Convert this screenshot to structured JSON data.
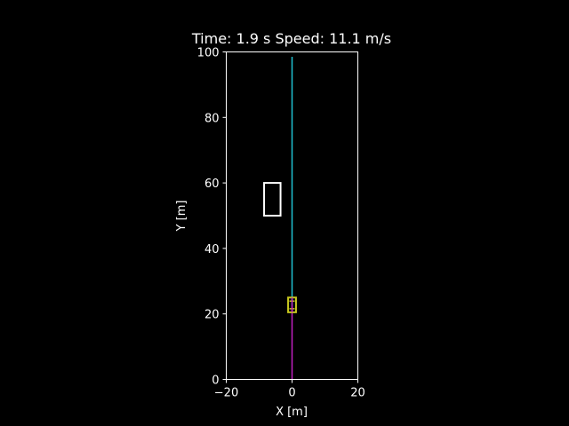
{
  "colors": {
    "background": "#000000",
    "axes": "#ffffff",
    "planned_path": "#1fc1d1",
    "traveled_path": "#c21fc2",
    "ego_vehicle": "#c8c81e",
    "obstacle": "#ffffff"
  },
  "chart_data": {
    "type": "line",
    "title": "Time: 1.9 s Speed: 11.1 m/s",
    "xlabel": "X [m]",
    "ylabel": "Y [m]",
    "xlim": [
      -20,
      20
    ],
    "ylim": [
      0,
      100
    ],
    "x_ticks": [
      -20,
      0,
      20
    ],
    "y_ticks": [
      0,
      20,
      40,
      60,
      80,
      100
    ],
    "x_tick_labels": [
      "−20",
      "0",
      "20"
    ],
    "y_tick_labels": [
      "0",
      "20",
      "40",
      "60",
      "80",
      "100"
    ],
    "grid": false,
    "series": [
      {
        "x": [
          0,
          0
        ],
        "y": [
          0,
          22.5
        ],
        "color": "#c21fc2"
      },
      {
        "x": [
          0,
          0
        ],
        "y": [
          22.5,
          98.5
        ],
        "color": "#1fc1d1"
      }
    ],
    "shapes": [
      {
        "kind": "rectangle",
        "x": [
          -8.5,
          -3.5
        ],
        "y": [
          50,
          60
        ],
        "color": "#ffffff"
      },
      {
        "kind": "rectangle",
        "x": [
          -1.2,
          1.2
        ],
        "y": [
          20.5,
          25
        ],
        "color": "#c8c81e"
      }
    ]
  }
}
